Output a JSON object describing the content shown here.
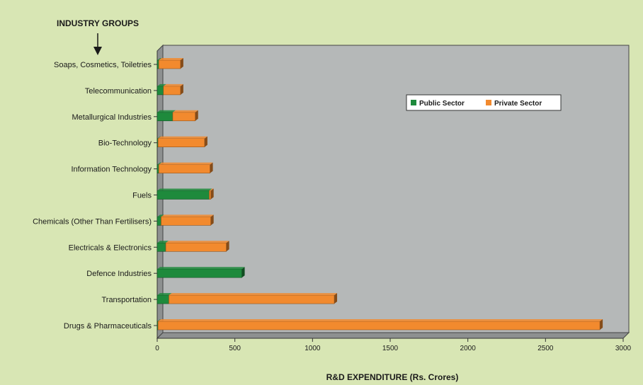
{
  "chart_data": {
    "type": "bar",
    "orientation": "horizontal",
    "stacked": true,
    "title": "",
    "ylabel": "INDUSTRY GROUPS",
    "xlabel": "R&D EXPENDITURE (Rs. Crores)",
    "xlim": [
      0,
      3000
    ],
    "xticks": [
      0,
      500,
      1000,
      1500,
      2000,
      2500,
      3000
    ],
    "grid": false,
    "legend_position": "top-right",
    "categories": [
      "Drugs & Pharmaceuticals",
      "Transportation",
      "Defence Industries",
      "Electricals & Electronics",
      "Chemicals (Other Than Fertilisers)",
      "Fuels",
      "Information Technology",
      "Bio-Technology",
      "Metallurgical Industries",
      "Telecommunication",
      "Soaps, Cosmetics, Toiletries"
    ],
    "series": [
      {
        "name": "Public Sector",
        "color": "#1e8a3c",
        "values": [
          5,
          75,
          545,
          55,
          25,
          335,
          10,
          5,
          100,
          40,
          10
        ]
      },
      {
        "name": "Private Sector",
        "color": "#f28a2e",
        "values": [
          2845,
          1065,
          0,
          390,
          320,
          10,
          330,
          300,
          145,
          110,
          140
        ]
      }
    ]
  }
}
